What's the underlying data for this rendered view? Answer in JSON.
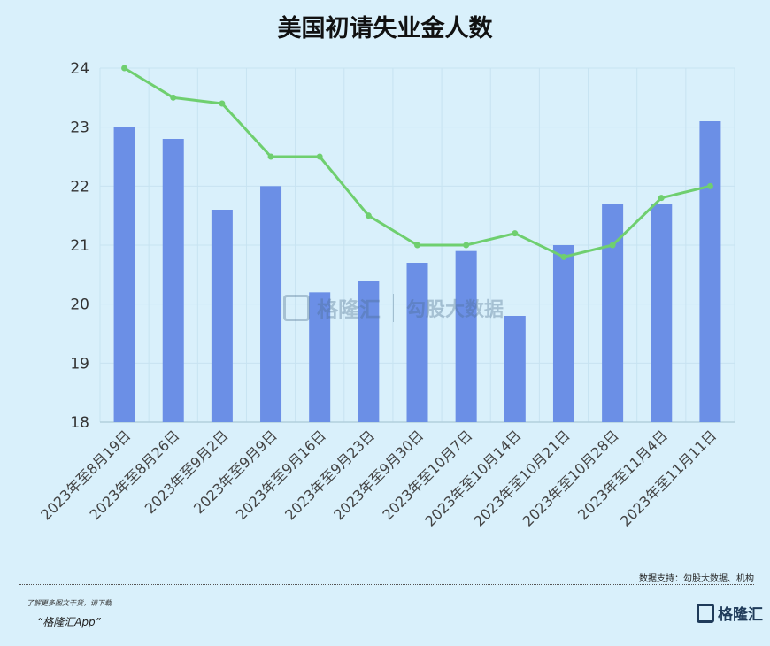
{
  "title": "美国初请失业金人数",
  "chart_data": {
    "type": "bar",
    "title": "美国初请失业金人数",
    "categories": [
      "2023年至8月19日",
      "2023年至8月26日",
      "2023年至9月2日",
      "2023年至9月9日",
      "2023年至9月16日",
      "2023年至9月23日",
      "2023年至9月30日",
      "2023年至10月7日",
      "2023年至10月14日",
      "2023年至10月21日",
      "2023年至10月28日",
      "2023年至11月4日",
      "2023年至11月11日"
    ],
    "series": [
      {
        "type": "bar",
        "color": "#6b8fe6",
        "values": [
          23.0,
          22.8,
          21.6,
          22.0,
          20.2,
          20.4,
          20.7,
          20.9,
          19.8,
          21.0,
          21.7,
          21.7,
          23.1
        ]
      },
      {
        "type": "line",
        "color": "#6fcf6f",
        "values": [
          24.0,
          23.5,
          23.4,
          22.5,
          22.5,
          21.5,
          21.0,
          21.0,
          21.2,
          20.8,
          21.0,
          21.8,
          22.0
        ]
      }
    ],
    "ylim": [
      18,
      24
    ],
    "yticks": [
      18,
      19,
      20,
      21,
      22,
      23,
      24
    ],
    "grid": true
  },
  "watermark": {
    "brand": "格隆汇",
    "brand2": "勾股大数据"
  },
  "source": "数据支持：勾股大数据、机构",
  "footer": {
    "note": "了解更多图文干货，请下载",
    "app": "“格隆汇App”",
    "logo_text": "格隆汇"
  }
}
